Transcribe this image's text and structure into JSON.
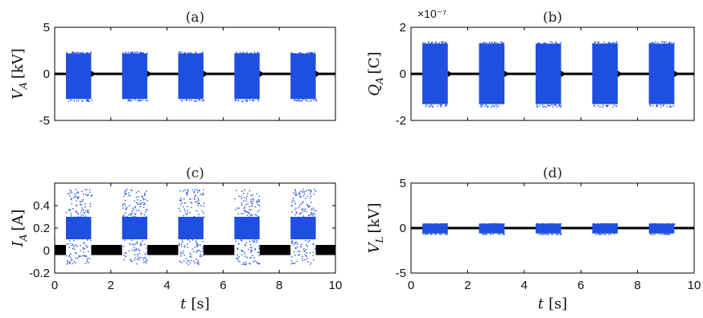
{
  "colors": {
    "scatter": "#1f4fe0",
    "line": "#000000",
    "axis": "#000000"
  },
  "chart_data": [
    {
      "id": "a",
      "type": "scatter",
      "title": "(a)",
      "ylabel_var": "V",
      "ylabel_sub": "A",
      "ylabel_unit": "[kV]",
      "xlim": [
        0,
        10
      ],
      "ylim": [
        -5,
        5
      ],
      "yticks": [
        "-5",
        "0",
        "5"
      ],
      "ytick_values": [
        -5,
        0,
        5
      ],
      "xticks": [],
      "xlabel": "",
      "exponent": "",
      "bursts": [
        [
          0.4,
          1.3
        ],
        [
          2.4,
          3.3
        ],
        [
          4.4,
          5.3
        ],
        [
          6.4,
          7.3
        ],
        [
          8.4,
          9.3
        ]
      ],
      "burst_range": [
        -2.7,
        2.2
      ],
      "baseline": 0
    },
    {
      "id": "b",
      "type": "scatter",
      "title": "(b)",
      "ylabel_var": "Q",
      "ylabel_sub": "A",
      "ylabel_unit": "[C]",
      "xlim": [
        0,
        10
      ],
      "ylim": [
        -2,
        2
      ],
      "yticks": [
        "-2",
        "0",
        "2"
      ],
      "ytick_values": [
        -2,
        0,
        2
      ],
      "xticks": [],
      "xlabel": "",
      "exponent": "×10⁻⁷",
      "bursts": [
        [
          0.4,
          1.3
        ],
        [
          2.4,
          3.3
        ],
        [
          4.4,
          5.3
        ],
        [
          6.4,
          7.3
        ],
        [
          8.4,
          9.3
        ]
      ],
      "burst_range": [
        -1.3,
        1.3
      ],
      "baseline": 0
    },
    {
      "id": "c",
      "type": "scatter",
      "title": "(c)",
      "ylabel_var": "I",
      "ylabel_sub": "A",
      "ylabel_unit": "[A]",
      "xlim": [
        0,
        10
      ],
      "ylim": [
        -0.2,
        0.6
      ],
      "yticks": [
        "-0.2",
        "0",
        "0.2",
        "0.4"
      ],
      "ytick_values": [
        -0.2,
        0,
        0.2,
        0.4
      ],
      "xticks": [
        "0",
        "2",
        "4",
        "6",
        "8",
        "10"
      ],
      "xtick_values": [
        0,
        2,
        4,
        6,
        8,
        10
      ],
      "xlabel_var": "t",
      "xlabel_unit": "[s]",
      "exponent": "",
      "bursts": [
        [
          0.4,
          1.3
        ],
        [
          2.4,
          3.3
        ],
        [
          4.4,
          5.3
        ],
        [
          6.4,
          7.3
        ],
        [
          8.4,
          9.3
        ]
      ],
      "burst_range": [
        0.1,
        0.3
      ],
      "burst_outliers": [
        -0.12,
        0.55
      ],
      "idle_range": [
        -0.04,
        0.05
      ]
    },
    {
      "id": "d",
      "type": "scatter",
      "title": "(d)",
      "ylabel_var": "V",
      "ylabel_sub": "L",
      "ylabel_unit": "[kV]",
      "xlim": [
        0,
        10
      ],
      "ylim": [
        -5,
        5
      ],
      "yticks": [
        "-5",
        "0",
        "5"
      ],
      "ytick_values": [
        -5,
        0,
        5
      ],
      "xticks": [
        "0",
        "2",
        "4",
        "6",
        "8",
        "10"
      ],
      "xtick_values": [
        0,
        2,
        4,
        6,
        8,
        10
      ],
      "xlabel_var": "t",
      "xlabel_unit": "[s]",
      "exponent": "",
      "bursts": [
        [
          0.4,
          1.3
        ],
        [
          2.4,
          3.3
        ],
        [
          4.4,
          5.3
        ],
        [
          6.4,
          7.3
        ],
        [
          8.4,
          9.3
        ]
      ],
      "burst_range": [
        -0.6,
        0.5
      ],
      "baseline": 0
    }
  ]
}
